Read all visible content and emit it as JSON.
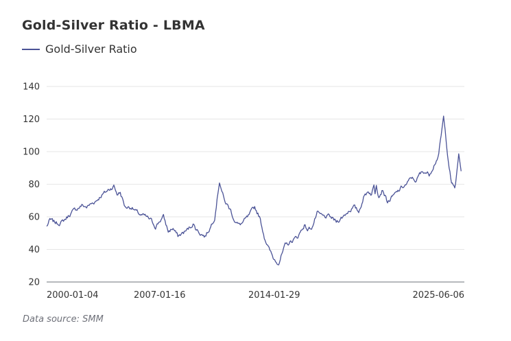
{
  "title": "Gold-Silver Ratio - LBMA",
  "source_note": "Data source:  SMM",
  "colors": {
    "series": "#4a5296",
    "grid": "#e6e6e6",
    "axis": "#6e7079"
  },
  "chart_data": {
    "type": "line",
    "title": "Gold-Silver Ratio - LBMA",
    "xlabel": "",
    "ylabel": "",
    "ylim": [
      20,
      140
    ],
    "y_ticks": [
      20,
      40,
      60,
      80,
      100,
      120,
      140
    ],
    "x_tick_labels": [
      "2000-01-04",
      "2007-01-16",
      "2014-01-29",
      "2025-06-06"
    ],
    "xlim": [
      1999.7,
      2025.8
    ],
    "legend_position": "top-left",
    "grid": true,
    "series": [
      {
        "name": "Gold-Silver Ratio",
        "x": [
          1999.7,
          1999.9,
          2000.1,
          2000.4,
          2000.7,
          2001.0,
          2001.3,
          2001.6,
          2001.9,
          2002.2,
          2002.5,
          2002.8,
          2003.1,
          2003.5,
          2003.9,
          2004.1,
          2004.3,
          2004.6,
          2005.0,
          2005.3,
          2005.6,
          2005.9,
          2006.2,
          2006.5,
          2006.8,
          2007.0,
          2007.3,
          2007.6,
          2007.9,
          2008.2,
          2008.5,
          2008.7,
          2008.85,
          2009.0,
          2009.3,
          2009.6,
          2009.9,
          2010.2,
          2010.5,
          2010.8,
          2011.0,
          2011.2,
          2011.35,
          2011.5,
          2011.7,
          2011.9,
          2012.3,
          2012.7,
          2013.0,
          2013.3,
          2013.6,
          2013.9,
          2014.2,
          2014.6,
          2015.0,
          2015.4,
          2015.8,
          2016.0,
          2016.3,
          2016.6,
          2017.0,
          2017.4,
          2017.8,
          2018.2,
          2018.6,
          2018.9,
          2019.2,
          2019.5,
          2019.8,
          2020.0,
          2020.15,
          2020.22,
          2020.3,
          2020.45,
          2020.7,
          2021.0,
          2021.3,
          2021.6,
          2021.9,
          2022.2,
          2022.5,
          2022.8,
          2023.0,
          2023.3,
          2023.6,
          2023.9,
          2024.2,
          2024.5,
          2024.8,
          2025.0,
          2025.2,
          2025.3,
          2025.45,
          2025.6
        ],
        "y": [
          54,
          58,
          57,
          56,
          57,
          60,
          63,
          65,
          67,
          66,
          68,
          70,
          73,
          76,
          79,
          74,
          75,
          66,
          66,
          63,
          61,
          60,
          58,
          54,
          58,
          60,
          51,
          53,
          48,
          50,
          52,
          54,
          56,
          53,
          50,
          48,
          53,
          60,
          82,
          70,
          67,
          64,
          60,
          57,
          55,
          56,
          60,
          66,
          60,
          48,
          40,
          34,
          32,
          42,
          45,
          48,
          55,
          52,
          54,
          62,
          60,
          60,
          57,
          60,
          64,
          66,
          63,
          72,
          76,
          74,
          79,
          75,
          81,
          73,
          77,
          69,
          72,
          75,
          78,
          80,
          84,
          82,
          86,
          88,
          86,
          92,
          98,
          121,
          95,
          80,
          78,
          84,
          98,
          88
        ]
      }
    ]
  }
}
